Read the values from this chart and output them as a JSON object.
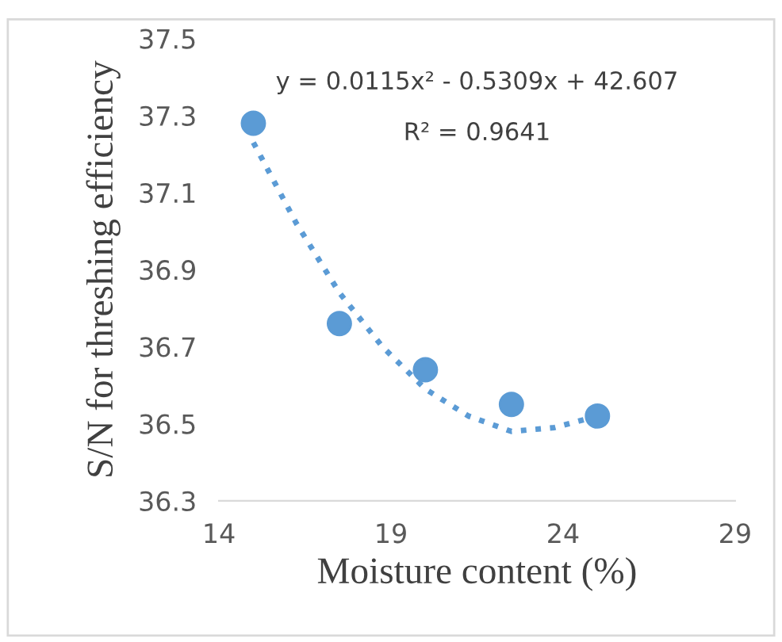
{
  "chart_data": {
    "type": "scatter",
    "xlabel": "Moisture content (%)",
    "ylabel": "S/N for threshing efficiency",
    "xlim": [
      14,
      29
    ],
    "xticks": [
      14,
      19,
      24,
      29
    ],
    "ylim": [
      36.3,
      37.5
    ],
    "yticks": [
      36.3,
      36.5,
      36.7,
      36.9,
      37.1,
      37.3,
      37.5
    ],
    "grid": false,
    "series": [
      {
        "type": "scatter",
        "color": "#5b9bd5",
        "marker": "circle",
        "x": [
          15,
          17.5,
          20,
          22.5,
          25
        ],
        "values": [
          37.28,
          36.76,
          36.64,
          36.55,
          36.52
        ]
      },
      {
        "type": "line",
        "color": "#5b9bd5",
        "line_style": "dotted",
        "marker": "none",
        "x": [
          15,
          16.25,
          17.5,
          18.75,
          20,
          21.25,
          22.5,
          23.75,
          25
        ],
        "values": [
          37.23,
          37.02,
          36.84,
          36.7,
          36.59,
          36.52,
          36.48,
          36.49,
          36.52
        ]
      }
    ],
    "annotations": [
      "y = 0.0115x² - 0.5309x + 42.607",
      "R² = 0.9641"
    ]
  }
}
